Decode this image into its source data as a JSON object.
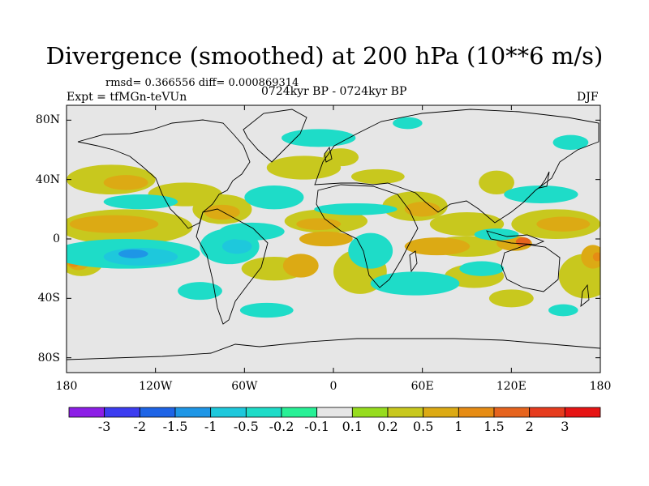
{
  "title": "Divergence (smoothed) at 200 hPa (10**6 m/s)",
  "stats": "rmsd= 0.366556 diff= 0.000869314",
  "experiment": "Expt = tfMGn-teVUn",
  "period": "0724kyr BP - 0724kyr BP",
  "season": "DJF",
  "lat_axis": {
    "labels": [
      "80N",
      "40N",
      "0",
      "40S",
      "80S"
    ],
    "values": [
      80,
      40,
      0,
      -40,
      -80
    ],
    "range": [
      -90,
      90
    ]
  },
  "lon_axis": {
    "labels": [
      "180",
      "120W",
      "60W",
      "0",
      "60E",
      "120E",
      "180"
    ],
    "values": [
      -180,
      -120,
      -60,
      0,
      60,
      120,
      180
    ],
    "range": [
      -180,
      180
    ]
  },
  "colorbar": {
    "labels": [
      "-3",
      "-2",
      "-1.5",
      "-1",
      "-0.5",
      "-0.2",
      "-0.1",
      "0.1",
      "0.2",
      "0.5",
      "1",
      "1.5",
      "2",
      "3"
    ],
    "colors": [
      "#8c1ee6",
      "#3c3cf0",
      "#1e64e6",
      "#1e96e6",
      "#1ec8dc",
      "#1edcc8",
      "#28f096",
      "#e6e6e6",
      "#96dc1e",
      "#c8c81e",
      "#dcaa14",
      "#e68c14",
      "#e6641e",
      "#e63c1e",
      "#e61414"
    ]
  },
  "map": {
    "background": "#e6e6e6",
    "coastline_color": "#000000",
    "regions": [
      {
        "level": "0.2",
        "lon": -140,
        "lat": 8,
        "rlon": 45,
        "rlat": 12
      },
      {
        "level": "0.5",
        "lon": -148,
        "lat": 10,
        "rlon": 30,
        "rlat": 6
      },
      {
        "level": "0.2",
        "lon": -150,
        "lat": 40,
        "rlon": 30,
        "rlat": 10
      },
      {
        "level": "0.5",
        "lon": -140,
        "lat": 38,
        "rlon": 15,
        "rlat": 5
      },
      {
        "level": "0.2",
        "lon": -75,
        "lat": 20,
        "rlon": 20,
        "rlat": 10
      },
      {
        "level": "0.5",
        "lon": -75,
        "lat": 18,
        "rlon": 12,
        "rlat": 5
      },
      {
        "level": "0.2",
        "lon": -100,
        "lat": 30,
        "rlon": 25,
        "rlat": 8
      },
      {
        "level": "0.2",
        "lon": -5,
        "lat": 12,
        "rlon": 28,
        "rlat": 8
      },
      {
        "level": "0.5",
        "lon": -10,
        "lat": 10,
        "rlon": 15,
        "rlat": 4
      },
      {
        "level": "0.2",
        "lon": 55,
        "lat": 22,
        "rlon": 22,
        "rlat": 10
      },
      {
        "level": "0.5",
        "lon": 60,
        "lat": 20,
        "rlon": 12,
        "rlat": 5
      },
      {
        "level": "0.2",
        "lon": 90,
        "lat": 10,
        "rlon": 25,
        "rlat": 8
      },
      {
        "level": "0.2",
        "lon": 150,
        "lat": 10,
        "rlon": 30,
        "rlat": 10
      },
      {
        "level": "0.5",
        "lon": 155,
        "lat": 10,
        "rlon": 18,
        "rlat": 5
      },
      {
        "level": "0.2",
        "lon": -20,
        "lat": 48,
        "rlon": 25,
        "rlat": 8
      },
      {
        "level": "0.2",
        "lon": 5,
        "lat": 55,
        "rlon": 12,
        "rlat": 6
      },
      {
        "level": "0.2",
        "lon": 30,
        "lat": 42,
        "rlon": 18,
        "rlat": 5
      },
      {
        "level": "0.2",
        "lon": 110,
        "lat": 38,
        "rlon": 12,
        "rlat": 8
      },
      {
        "level": "0.2",
        "lon": 95,
        "lat": -25,
        "rlon": 20,
        "rlat": 8
      },
      {
        "level": "0.2",
        "lon": 120,
        "lat": -40,
        "rlon": 15,
        "rlat": 6
      },
      {
        "level": "0.2",
        "lon": 170,
        "lat": -25,
        "rlon": 18,
        "rlat": 15
      },
      {
        "level": "0.2",
        "lon": -40,
        "lat": -20,
        "rlon": 22,
        "rlat": 8
      },
      {
        "level": "0.5",
        "lon": -22,
        "lat": -18,
        "rlon": 12,
        "rlat": 8
      },
      {
        "level": "0.5",
        "lon": -5,
        "lat": 0,
        "rlon": 18,
        "rlat": 5
      },
      {
        "level": "0.2",
        "lon": 18,
        "lat": -22,
        "rlon": 18,
        "rlat": 15
      },
      {
        "level": "0.2",
        "lon": 90,
        "lat": -5,
        "rlon": 25,
        "rlat": 7
      },
      {
        "level": "0.5",
        "lon": 70,
        "lat": -5,
        "rlon": 22,
        "rlat": 6
      },
      {
        "level": "0.5",
        "lon": 122,
        "lat": -3,
        "rlon": 12,
        "rlat": 5
      },
      {
        "level": "1.5",
        "lon": 128,
        "lat": -2,
        "rlon": 5,
        "rlat": 3
      },
      {
        "level": "0.2",
        "lon": -170,
        "lat": -15,
        "rlon": 15,
        "rlat": 10
      },
      {
        "level": "0.5",
        "lon": -172,
        "lat": -15,
        "rlon": 8,
        "rlat": 6
      },
      {
        "level": "1",
        "lon": -175,
        "lat": -15,
        "rlon": 4,
        "rlat": 4
      },
      {
        "level": "0.5",
        "lon": 175,
        "lat": -12,
        "rlon": 8,
        "rlat": 8
      },
      {
        "level": "1",
        "lon": 178,
        "lat": -12,
        "rlon": 3,
        "rlat": 3
      },
      {
        "level": "-0.2",
        "lon": -140,
        "lat": -10,
        "rlon": 50,
        "rlat": 10
      },
      {
        "level": "-0.5",
        "lon": -130,
        "lat": -12,
        "rlon": 25,
        "rlat": 6
      },
      {
        "level": "-1",
        "lon": -135,
        "lat": -10,
        "rlon": 10,
        "rlat": 3
      },
      {
        "level": "-0.2",
        "lon": -130,
        "lat": 25,
        "rlon": 25,
        "rlat": 5
      },
      {
        "level": "-0.2",
        "lon": -70,
        "lat": -5,
        "rlon": 20,
        "rlat": 12
      },
      {
        "level": "-0.5",
        "lon": -65,
        "lat": -5,
        "rlon": 10,
        "rlat": 5
      },
      {
        "level": "-0.2",
        "lon": -55,
        "lat": 5,
        "rlon": 22,
        "rlat": 6
      },
      {
        "level": "-0.2",
        "lon": -40,
        "lat": 28,
        "rlon": 20,
        "rlat": 8
      },
      {
        "level": "-0.2",
        "lon": 15,
        "lat": 20,
        "rlon": 28,
        "rlat": 4
      },
      {
        "level": "-0.2",
        "lon": 25,
        "lat": -8,
        "rlon": 15,
        "rlat": 12
      },
      {
        "level": "-0.2",
        "lon": 55,
        "lat": -30,
        "rlon": 30,
        "rlat": 8
      },
      {
        "level": "-0.2",
        "lon": 100,
        "lat": -20,
        "rlon": 15,
        "rlat": 5
      },
      {
        "level": "-0.2",
        "lon": 140,
        "lat": 30,
        "rlon": 25,
        "rlat": 6
      },
      {
        "level": "-0.2",
        "lon": 110,
        "lat": 3,
        "rlon": 15,
        "rlat": 4
      },
      {
        "level": "-0.2",
        "lon": -10,
        "lat": 68,
        "rlon": 25,
        "rlat": 6
      },
      {
        "level": "-0.2",
        "lon": 50,
        "lat": 78,
        "rlon": 10,
        "rlat": 4
      },
      {
        "level": "-0.2",
        "lon": 155,
        "lat": -48,
        "rlon": 10,
        "rlat": 4
      },
      {
        "level": "-0.2",
        "lon": -45,
        "lat": -48,
        "rlon": 18,
        "rlat": 5
      },
      {
        "level": "-0.2",
        "lon": -90,
        "lat": -35,
        "rlon": 15,
        "rlat": 6
      },
      {
        "level": "-0.2",
        "lon": 160,
        "lat": 65,
        "rlon": 12,
        "rlat": 5
      }
    ]
  }
}
